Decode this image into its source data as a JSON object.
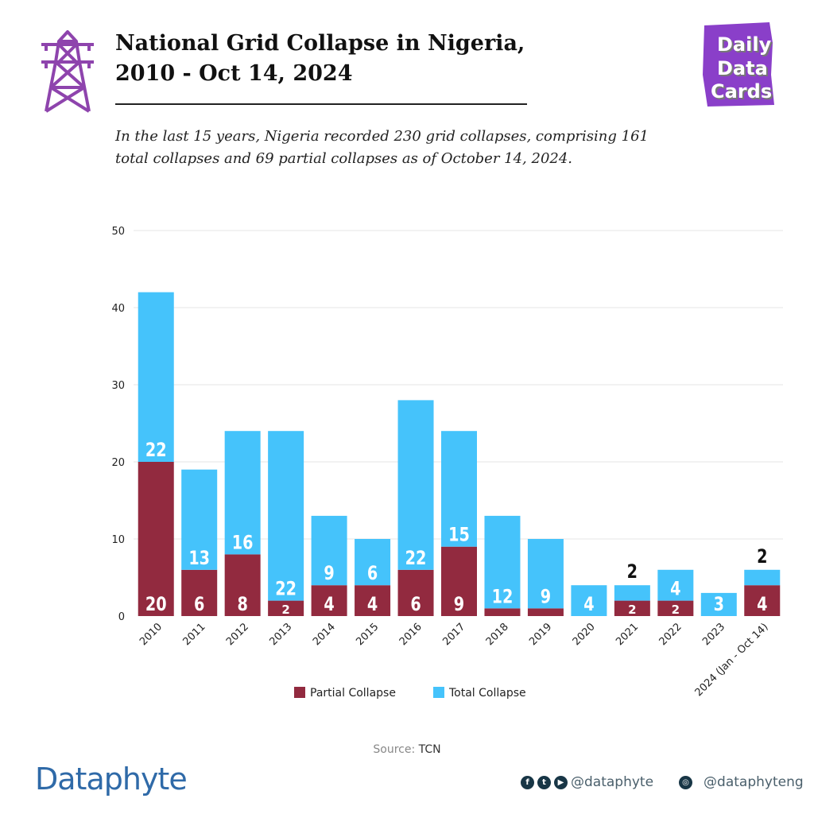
{
  "header": {
    "title_line1": "National Grid Collapse in Nigeria,",
    "title_line2": "2010 - Oct 14, 2024",
    "subtitle_line1": "In the last 15 years, Nigeria recorded 230 grid collapses, comprising 161",
    "subtitle_line2": "total collapses and 69 partial collapses as of October 14, 2024.",
    "tower_icon": "transmission-tower-icon",
    "logo": "Daily Data Cards"
  },
  "chart_data": {
    "type": "bar",
    "stacked": true,
    "categories": [
      "2010",
      "2011",
      "2012",
      "2013",
      "2014",
      "2015",
      "2016",
      "2017",
      "2018",
      "2019",
      "2020",
      "2021",
      "2022",
      "2023",
      "2024 (Jan - Oct 14)"
    ],
    "series": [
      {
        "name": "Partial Collapse",
        "color": "#922a3f",
        "values": [
          20,
          6,
          8,
          2,
          4,
          4,
          6,
          9,
          1,
          1,
          0,
          2,
          2,
          0,
          4
        ]
      },
      {
        "name": "Total Collapse",
        "color": "#45c3fb",
        "values": [
          22,
          13,
          16,
          22,
          9,
          6,
          22,
          15,
          12,
          9,
          4,
          2,
          4,
          3,
          2
        ]
      }
    ],
    "ylim": [
      0,
      50
    ],
    "yticks": [
      0,
      10,
      20,
      30,
      40,
      50
    ],
    "grid": true,
    "legend": "bottom"
  },
  "footer": {
    "source_label": "Source:",
    "source_value": "TCN",
    "brand": "Dataphyte",
    "handle1": "@dataphyte",
    "handle2": "@dataphyteng"
  }
}
